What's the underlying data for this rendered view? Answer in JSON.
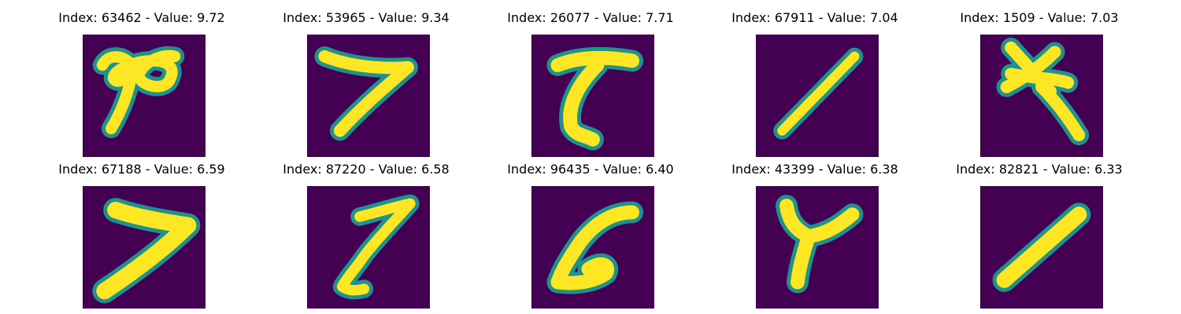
{
  "figure": {
    "panels": [
      {
        "index": "63462",
        "value": "9.72",
        "title": "Index: 63462 - Value: 9.72",
        "glyph": "digit-7-loopy"
      },
      {
        "index": "53965",
        "value": "9.34",
        "title": "Index: 53965 - Value: 9.34",
        "glyph": "digit-7"
      },
      {
        "index": "26077",
        "value": "7.71",
        "title": "Index: 26077 - Value: 7.71",
        "glyph": "digit-7-curved"
      },
      {
        "index": "67911",
        "value": "7.04",
        "title": "Index: 67911 - Value: 7.04",
        "glyph": "digit-1-slanted"
      },
      {
        "index": "1509",
        "value": "7.03",
        "title": "Index: 1509 - Value: 7.03",
        "glyph": "digit-7-crossed"
      },
      {
        "index": "67188",
        "value": "6.59",
        "title": "Index: 67188 - Value: 6.59",
        "glyph": "digit-7-bold"
      },
      {
        "index": "87220",
        "value": "6.58",
        "title": "Index: 87220 - Value: 6.58",
        "glyph": "digit-7-narrow"
      },
      {
        "index": "96435",
        "value": "6.40",
        "title": "Index: 96435 - Value: 6.40",
        "glyph": "digit-6-open"
      },
      {
        "index": "43399",
        "value": "6.38",
        "title": "Index: 43399 - Value: 6.38",
        "glyph": "digit-y-shape"
      },
      {
        "index": "82821",
        "value": "6.33",
        "title": "Index: 82821 - Value: 6.33",
        "glyph": "digit-1-thick"
      }
    ],
    "colors": {
      "background": "#440154",
      "stroke_edge": "#21918c",
      "stroke_core": "#fde725"
    }
  }
}
